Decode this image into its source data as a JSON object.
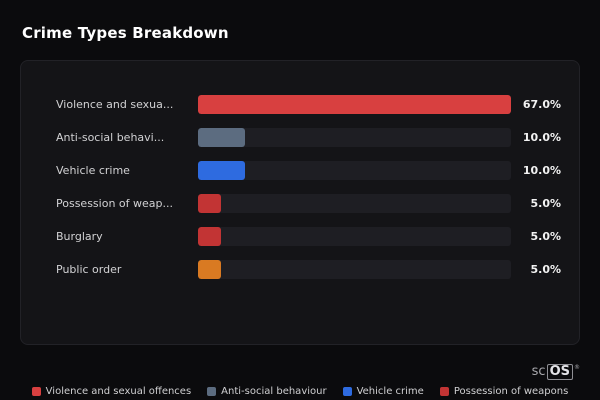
{
  "page": {
    "title": "Crime Types Breakdown"
  },
  "chart_data": {
    "type": "bar",
    "orientation": "horizontal",
    "title": "Crime Types Breakdown",
    "categories": [
      "Violence and sexua...",
      "Anti-social behavi...",
      "Vehicle crime",
      "Possession of weap...",
      "Burglary",
      "Public order"
    ],
    "values": [
      67.0,
      10.0,
      10.0,
      5.0,
      5.0,
      5.0
    ],
    "value_labels": [
      "67.0%",
      "10.0%",
      "10.0%",
      "5.0%",
      "5.0%",
      "5.0%"
    ],
    "unit": "%",
    "xlim": [
      0,
      67
    ],
    "bar_colors": [
      "#d84040",
      "#5c6c80",
      "#2e6be0",
      "#c23434",
      "#c23434",
      "#d97a22"
    ],
    "track_color": "#1e1e23",
    "grid": false,
    "legend_position": "bottom"
  },
  "legend": {
    "items": [
      {
        "label": "Violence and sexual offences",
        "color": "#d84040"
      },
      {
        "label": "Anti-social behaviour",
        "color": "#5c6c80"
      },
      {
        "label": "Vehicle crime",
        "color": "#2e6be0"
      },
      {
        "label": "Possession of weapons",
        "color": "#c23434"
      }
    ]
  },
  "branding": {
    "text_sc": "sc",
    "text_os": "OS",
    "registered": "®"
  }
}
